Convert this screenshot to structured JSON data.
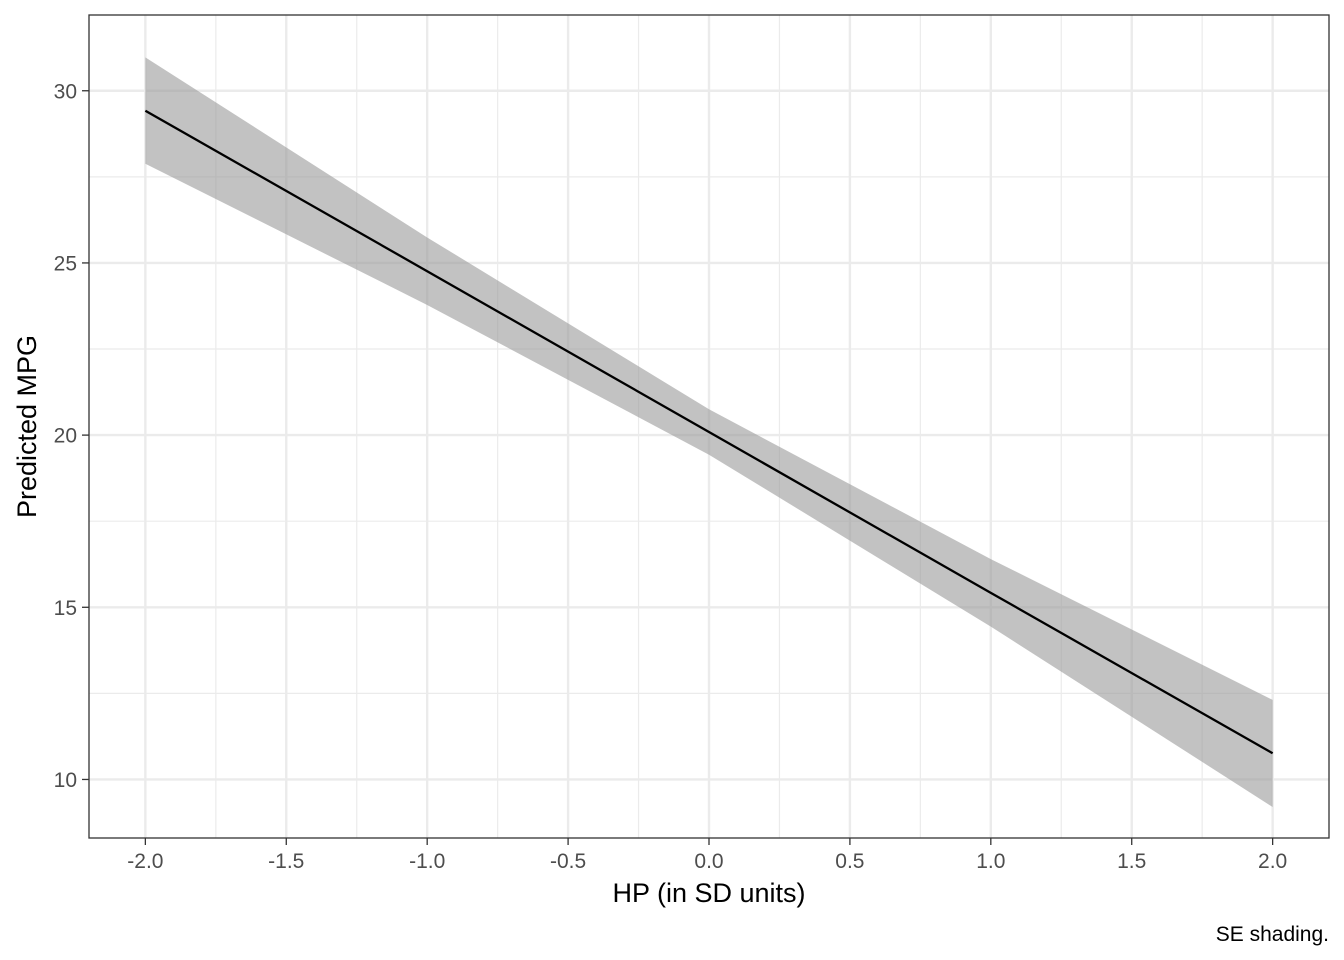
{
  "chart_data": {
    "type": "line",
    "title": "",
    "xlabel": "HP (in SD units)",
    "ylabel": "Predicted MPG",
    "caption": "SE shading.",
    "xlim": [
      -2.2,
      2.2
    ],
    "ylim": [
      8.3,
      32.2
    ],
    "x_ticks": [
      -2.0,
      -1.5,
      -1.0,
      -0.5,
      0.0,
      0.5,
      1.0,
      1.5,
      2.0
    ],
    "x_tick_labels": [
      "-2.0",
      "-1.5",
      "-1.0",
      "-0.5",
      "0.0",
      "0.5",
      "1.0",
      "1.5",
      "2.0"
    ],
    "y_ticks": [
      10,
      15,
      20,
      25,
      30
    ],
    "y_tick_labels": [
      "10",
      "15",
      "20",
      "25",
      "30"
    ],
    "grid": true,
    "series": [
      {
        "x": [
          -2.0,
          -1.0,
          0.0,
          1.0,
          2.0
        ],
        "values": [
          29.42,
          24.76,
          20.09,
          15.42,
          10.76
        ],
        "lower": [
          27.88,
          23.78,
          19.43,
          14.44,
          9.2
        ],
        "upper": [
          30.97,
          25.74,
          20.75,
          16.4,
          12.31
        ]
      }
    ],
    "colors": {
      "line": "#000000",
      "ribbon": "#999999",
      "grid": "#ebebeb",
      "panel_border": "#333333",
      "tick_label": "#4d4d4d"
    }
  }
}
